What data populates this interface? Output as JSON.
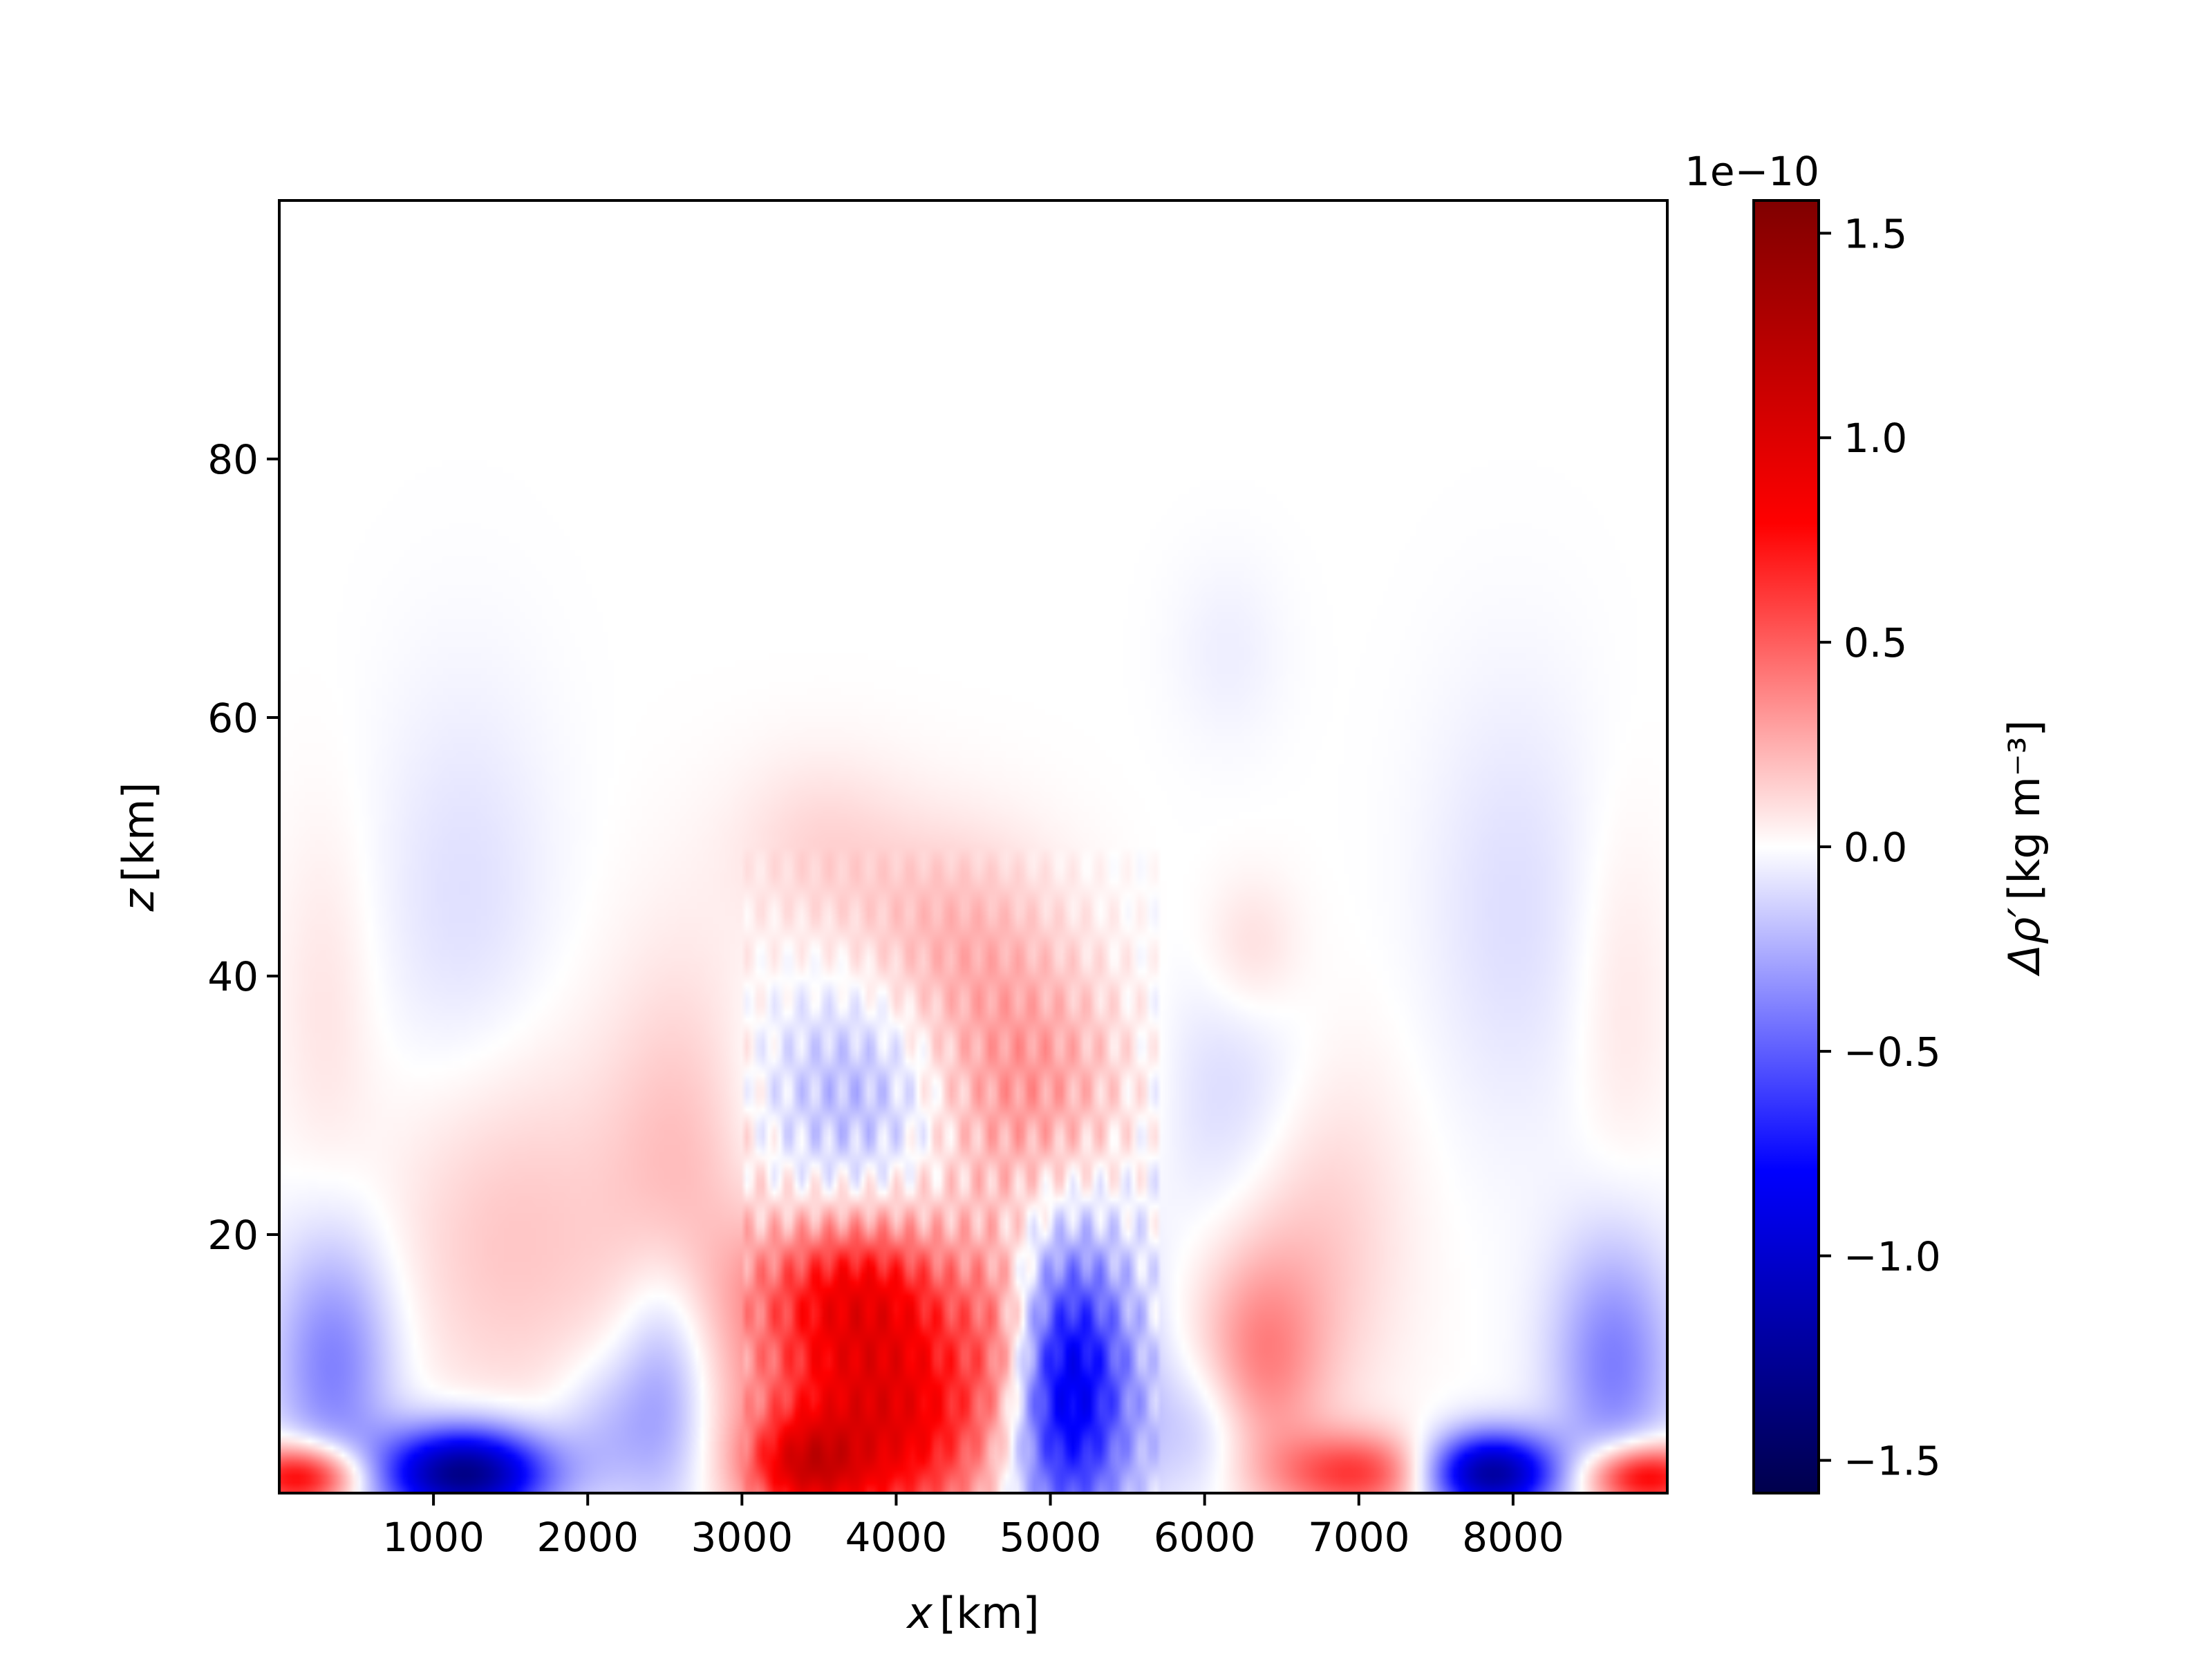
{
  "chart_data": {
    "type": "heatmap",
    "title": "",
    "xlabel_var": "x",
    "xlabel_unit": "[km]",
    "ylabel_var": "z",
    "ylabel_unit": "[km]",
    "xlim": [
      0,
      9000
    ],
    "ylim": [
      0,
      100
    ],
    "x_ticks": [
      1000,
      2000,
      3000,
      4000,
      5000,
      6000,
      7000,
      8000
    ],
    "x_tick_labels": [
      "1000",
      "2000",
      "3000",
      "4000",
      "5000",
      "6000",
      "7000",
      "8000"
    ],
    "y_ticks": [
      20,
      40,
      60,
      80
    ],
    "y_tick_labels": [
      "20",
      "40",
      "60",
      "80"
    ],
    "colormap": "seismic",
    "colorbar": {
      "label_var": "Δρ′",
      "label_unit": "[kg m⁻³]",
      "scale_label": "1e−10",
      "vmin": -1.58,
      "vmax": 1.58,
      "ticks": [
        -1.5,
        -1.0,
        -0.5,
        0.0,
        0.5,
        1.0,
        1.5
      ],
      "tick_labels": [
        "−1.5",
        "−1.0",
        "−0.5",
        "0.0",
        "0.5",
        "1.0",
        "1.5"
      ],
      "colors": [
        "#00004c",
        "#0000ff",
        "#ffffff",
        "#ff0000",
        "#800000"
      ]
    },
    "features_units": "x in km, z in km, value in 1e-10 kg m^-3",
    "features": [
      {
        "x": 3900,
        "z": 6,
        "sx": 550,
        "sz": 7,
        "v": 0.95
      },
      {
        "x": 3400,
        "z": 2,
        "sx": 250,
        "sz": 2.5,
        "v": 0.6
      },
      {
        "x": 3700,
        "z": 16,
        "sx": 450,
        "sz": 4,
        "v": 0.55
      },
      {
        "x": 5100,
        "z": 8,
        "sx": 300,
        "sz": 8,
        "v": -0.95
      },
      {
        "x": 4700,
        "z": 12,
        "sx": 200,
        "sz": 6,
        "v": 0.35
      },
      {
        "x": 1200,
        "z": 1.5,
        "sx": 380,
        "sz": 2.5,
        "v": -1.35
      },
      {
        "x": 7850,
        "z": 1.5,
        "sx": 300,
        "sz": 2.2,
        "v": -1.25
      },
      {
        "x": 150,
        "z": 1.2,
        "sx": 280,
        "sz": 1.8,
        "v": 0.9
      },
      {
        "x": 8850,
        "z": 1.2,
        "sx": 280,
        "sz": 1.8,
        "v": 0.9
      },
      {
        "x": 7000,
        "z": 1.5,
        "sx": 380,
        "sz": 2.2,
        "v": 0.6
      },
      {
        "x": 2500,
        "z": 8,
        "sx": 220,
        "sz": 7,
        "v": -0.35
      },
      {
        "x": 2100,
        "z": 5,
        "sx": 230,
        "sz": 4,
        "v": -0.18
      },
      {
        "x": 350,
        "z": 10,
        "sx": 280,
        "sz": 7,
        "v": -0.4
      },
      {
        "x": 8650,
        "z": 10,
        "sx": 280,
        "sz": 7,
        "v": -0.4
      },
      {
        "x": 1500,
        "z": 20,
        "sx": 550,
        "sz": 10,
        "v": 0.18
      },
      {
        "x": 2600,
        "z": 24,
        "sx": 350,
        "sz": 12,
        "v": 0.2
      },
      {
        "x": 6350,
        "z": 10,
        "sx": 280,
        "sz": 6,
        "v": 0.35
      },
      {
        "x": 6700,
        "z": 20,
        "sx": 400,
        "sz": 10,
        "v": 0.18
      },
      {
        "x": 6000,
        "z": 5,
        "sx": 250,
        "sz": 4,
        "v": -0.2
      },
      {
        "x": 3800,
        "z": 31,
        "sx": 450,
        "sz": 6,
        "v": -0.25
      },
      {
        "x": 4800,
        "z": 31,
        "sx": 500,
        "sz": 7,
        "v": 0.33
      },
      {
        "x": 4350,
        "z": 43,
        "sx": 480,
        "sz": 6,
        "v": 0.2
      },
      {
        "x": 3500,
        "z": 50,
        "sx": 400,
        "sz": 5,
        "v": 0.12
      },
      {
        "x": 1200,
        "z": 45,
        "sx": 400,
        "sz": 12,
        "v": -0.1
      },
      {
        "x": 8000,
        "z": 45,
        "sx": 400,
        "sz": 12,
        "v": -0.1
      },
      {
        "x": 6200,
        "z": 30,
        "sx": 400,
        "sz": 8,
        "v": -0.15
      },
      {
        "x": 6300,
        "z": 42,
        "sx": 220,
        "sz": 4,
        "v": 0.12
      },
      {
        "x": 6150,
        "z": 65,
        "sx": 250,
        "sz": 5,
        "v": -0.05
      },
      {
        "x": 300,
        "z": 38,
        "sx": 220,
        "sz": 10,
        "v": 0.08
      },
      {
        "x": 8700,
        "z": 38,
        "sx": 220,
        "sz": 10,
        "v": 0.08
      }
    ]
  }
}
